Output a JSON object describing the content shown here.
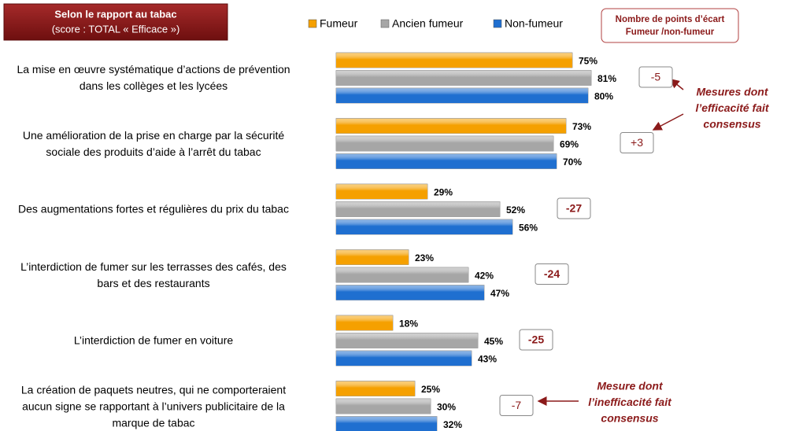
{
  "chart_data": {
    "type": "hbar",
    "title": "Selon le rapport au tabac",
    "subtitle": "(score  : TOTAL « Efficace »)",
    "categories": [
      "La mise en œuvre systématique d’actions de prévention\ndans les collèges et les lycées",
      "Une amélioration de la prise en charge par la sécurité\nsociale des produits d’aide à l’arrêt du tabac",
      "Des augmentations fortes et régulières du prix du tabac",
      "L’interdiction de fumer sur les terrasses des cafés, des\nbars et des restaurants",
      "L’interdiction de fumer en voiture",
      "La création de paquets neutres, qui ne comporteraient\naucun signe se rapportant à l’univers publicitaire de la\nmarque de tabac"
    ],
    "series": [
      {
        "name": "Fumeur",
        "color": "#f5a000",
        "values": [
          75,
          73,
          29,
          23,
          18,
          25
        ],
        "value_labels": [
          "75%",
          "73%",
          "29%",
          "23%",
          "18%",
          "25%"
        ]
      },
      {
        "name": "Ancien fumeur",
        "color": "#a6a6a6",
        "values": [
          81,
          69,
          52,
          42,
          45,
          30
        ],
        "value_labels": [
          "81%",
          "69%",
          "52%",
          "42%",
          "45%",
          "30%"
        ]
      },
      {
        "name": "Non-fumeur",
        "color": "#1f6fd0",
        "values": [
          80,
          70,
          56,
          47,
          43,
          32
        ],
        "value_labels": [
          "80%",
          "70%",
          "56%",
          "47%",
          "43%",
          "32%"
        ]
      }
    ],
    "gap_box_title": [
      "Nombre de points d’écart",
      "Fumeur /non-fumeur"
    ],
    "gap_labels": [
      "-5",
      "+3",
      "-27",
      "-24",
      "-25",
      "-7"
    ],
    "annotations": [
      [
        "Mesures  dont",
        "l’efficacité fait",
        "consensus"
      ],
      [
        "Mesure  dont",
        "l’inefficacité fait",
        "consensus"
      ]
    ]
  }
}
